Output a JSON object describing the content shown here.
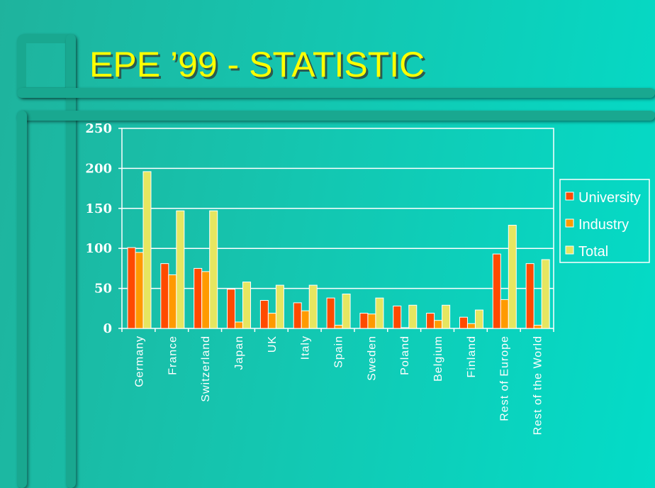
{
  "slide": {
    "title": "EPE ’99 - STATISTIC"
  },
  "colors": {
    "background": "#14c6b0",
    "accent_bar": "#19a890",
    "title": "#ffff00",
    "university": "#ff4a00",
    "industry": "#ff9a00",
    "total": "#e6e660"
  },
  "chart_data": {
    "type": "bar",
    "title": "",
    "xlabel": "",
    "ylabel": "",
    "ylim": [
      0,
      250
    ],
    "yticks": [
      0,
      50,
      100,
      150,
      200,
      250
    ],
    "grid": true,
    "legend_position": "right",
    "categories": [
      "Germany",
      "France",
      "Switzerland",
      "Japan",
      "UK",
      "Italy",
      "Spain",
      "Sweden",
      "Poland",
      "Belgium",
      "Finland",
      "Rest of Europe",
      "Rest of the World"
    ],
    "series": [
      {
        "name": "University",
        "color": "#ff4a00",
        "values": [
          101,
          81,
          75,
          49,
          35,
          32,
          38,
          19,
          28,
          19,
          14,
          93,
          81
        ]
      },
      {
        "name": "Industry",
        "color": "#ff9a00",
        "values": [
          95,
          67,
          71,
          8,
          19,
          22,
          4,
          18,
          1,
          10,
          6,
          36,
          4
        ]
      },
      {
        "name": "Total",
        "color": "#e6e660",
        "values": [
          196,
          147,
          147,
          58,
          54,
          54,
          43,
          38,
          29,
          29,
          23,
          129,
          86
        ]
      }
    ]
  }
}
